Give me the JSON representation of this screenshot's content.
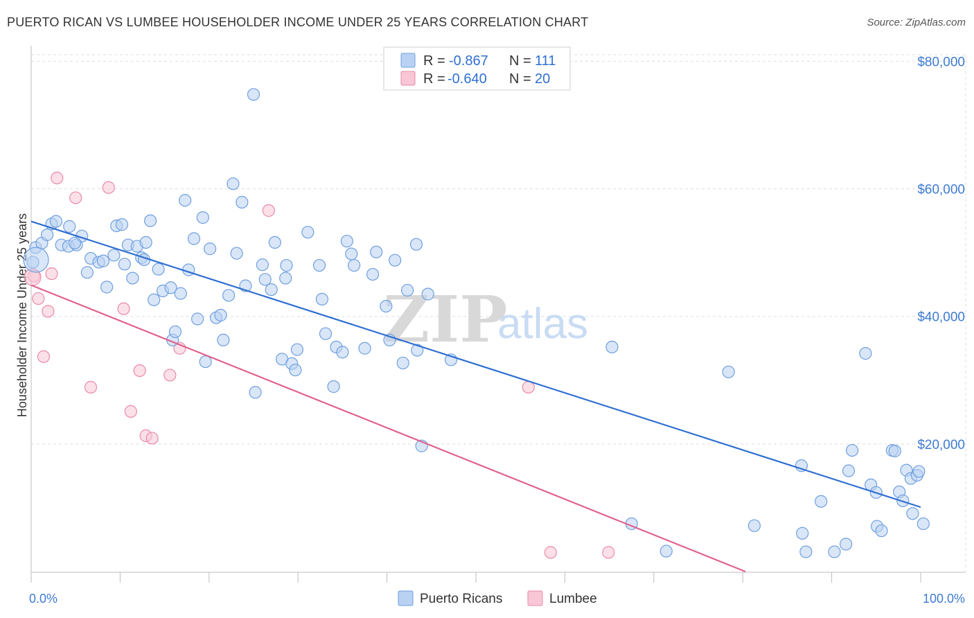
{
  "header": {
    "title": "PUERTO RICAN VS LUMBEE HOUSEHOLDER INCOME UNDER 25 YEARS CORRELATION CHART",
    "source": "Source: ZipAtlas.com"
  },
  "watermark": {
    "zip": "ZIP",
    "atlas": "atlas"
  },
  "legend": {
    "r_label": "R =",
    "n_label": "N =",
    "rows": [
      {
        "series": "Puerto Ricans",
        "r": "-0.867",
        "n": "111"
      },
      {
        "series": "Lumbee",
        "r": "-0.640",
        "n": "20"
      }
    ]
  },
  "colors": {
    "blue_fill": "#b9d1f3",
    "blue_stroke": "#6f9fdf",
    "blue_line": "#2f6fd1",
    "pink_fill": "#f8c6d5",
    "pink_stroke": "#e98aa8",
    "pink_line": "#e0628e",
    "grid": "#dddddd",
    "tick_label": "#3d7bd1"
  },
  "chart_data": {
    "type": "scatter",
    "title": "PUERTO RICAN VS LUMBEE HOUSEHOLDER INCOME UNDER 25 YEARS CORRELATION CHART",
    "xlabel": "",
    "ylabel": "Householder Income Under 25 years",
    "xlim": [
      0,
      100
    ],
    "ylim": [
      0,
      82000
    ],
    "x_tick_labels": [
      "0.0%",
      "100.0%"
    ],
    "y_ticks": [
      20000,
      40000,
      60000,
      80000
    ],
    "y_tick_labels": [
      "$20,000",
      "$40,000",
      "$60,000",
      "$80,000"
    ],
    "grid": true,
    "legend_position": "top-center",
    "series": [
      {
        "name": "Puerto Ricans",
        "r": -0.867,
        "n": 111,
        "trend": {
          "x": [
            0,
            100
          ],
          "y": [
            54900,
            10100
          ]
        },
        "points": [
          [
            0.2,
            48500
          ],
          [
            0.5,
            50800
          ],
          [
            1.2,
            51500
          ],
          [
            1.8,
            52800
          ],
          [
            2.3,
            54500
          ],
          [
            2.8,
            54900
          ],
          [
            3.4,
            51200
          ],
          [
            4.2,
            51000
          ],
          [
            4.3,
            54100
          ],
          [
            5.1,
            51200
          ],
          [
            5.7,
            52600
          ],
          [
            6.3,
            46900
          ],
          [
            6.7,
            49100
          ],
          [
            7.6,
            48500
          ],
          [
            8.1,
            48700
          ],
          [
            8.5,
            44600
          ],
          [
            9.3,
            49600
          ],
          [
            9.6,
            54200
          ],
          [
            10.2,
            54400
          ],
          [
            10.5,
            48200
          ],
          [
            10.9,
            51200
          ],
          [
            11.4,
            46000
          ],
          [
            11.9,
            51000
          ],
          [
            12.4,
            49200
          ],
          [
            12.7,
            48900
          ],
          [
            12.9,
            51600
          ],
          [
            13.4,
            55000
          ],
          [
            13.8,
            42600
          ],
          [
            14.3,
            47400
          ],
          [
            14.8,
            44000
          ],
          [
            15.7,
            44500
          ],
          [
            15.9,
            36300
          ],
          [
            16.2,
            37600
          ],
          [
            16.8,
            43600
          ],
          [
            17.3,
            58200
          ],
          [
            17.7,
            47300
          ],
          [
            18.3,
            52200
          ],
          [
            18.7,
            39600
          ],
          [
            19.3,
            55500
          ],
          [
            19.6,
            32900
          ],
          [
            20.1,
            50600
          ],
          [
            20.8,
            39800
          ],
          [
            21.3,
            40200
          ],
          [
            21.6,
            36300
          ],
          [
            22.2,
            43300
          ],
          [
            22.7,
            60800
          ],
          [
            23.1,
            49900
          ],
          [
            23.7,
            57900
          ],
          [
            24.1,
            44800
          ],
          [
            25.0,
            74800
          ],
          [
            25.2,
            28100
          ],
          [
            26.0,
            48100
          ],
          [
            26.3,
            45800
          ],
          [
            27.0,
            44200
          ],
          [
            27.4,
            51600
          ],
          [
            28.2,
            33300
          ],
          [
            28.6,
            46000
          ],
          [
            28.7,
            48000
          ],
          [
            29.3,
            32600
          ],
          [
            29.7,
            31600
          ],
          [
            29.9,
            34800
          ],
          [
            31.1,
            53200
          ],
          [
            32.4,
            48000
          ],
          [
            32.7,
            42700
          ],
          [
            33.1,
            37300
          ],
          [
            34.0,
            29000
          ],
          [
            34.3,
            35200
          ],
          [
            35.0,
            34400
          ],
          [
            35.5,
            51800
          ],
          [
            36.0,
            49800
          ],
          [
            36.3,
            48000
          ],
          [
            37.5,
            35000
          ],
          [
            38.4,
            46600
          ],
          [
            38.8,
            50100
          ],
          [
            39.9,
            41600
          ],
          [
            40.3,
            36300
          ],
          [
            40.9,
            48800
          ],
          [
            41.8,
            32700
          ],
          [
            42.3,
            44100
          ],
          [
            43.3,
            51300
          ],
          [
            43.4,
            34700
          ],
          [
            43.9,
            19700
          ],
          [
            44.6,
            43500
          ],
          [
            47.2,
            33200
          ],
          [
            65.3,
            35200
          ],
          [
            67.5,
            7500
          ],
          [
            71.4,
            3200
          ],
          [
            78.4,
            31300
          ],
          [
            81.3,
            7200
          ],
          [
            86.6,
            16600
          ],
          [
            86.7,
            6000
          ],
          [
            87.1,
            3100
          ],
          [
            88.8,
            11000
          ],
          [
            90.3,
            3100
          ],
          [
            91.6,
            4300
          ],
          [
            91.9,
            15800
          ],
          [
            92.3,
            19000
          ],
          [
            93.8,
            34200
          ],
          [
            94.4,
            13600
          ],
          [
            95.0,
            12400
          ],
          [
            95.1,
            7100
          ],
          [
            95.6,
            6400
          ],
          [
            96.8,
            19000
          ],
          [
            97.1,
            18900
          ],
          [
            97.6,
            12500
          ],
          [
            98.0,
            11100
          ],
          [
            98.4,
            15900
          ],
          [
            98.9,
            14600
          ],
          [
            99.1,
            9100
          ],
          [
            99.6,
            15100
          ],
          [
            99.8,
            15700
          ],
          [
            100.3,
            7500
          ],
          [
            4.9,
            51500
          ]
        ]
      },
      {
        "name": "Lumbee",
        "r": -0.64,
        "n": 20,
        "trend": {
          "x": [
            0,
            80.3
          ],
          "y": [
            44900,
            0
          ]
        },
        "points": [
          [
            0.3,
            46300
          ],
          [
            0.8,
            42800
          ],
          [
            1.4,
            33700
          ],
          [
            1.9,
            40800
          ],
          [
            2.3,
            46700
          ],
          [
            2.9,
            61700
          ],
          [
            5.0,
            58600
          ],
          [
            6.7,
            28900
          ],
          [
            8.7,
            60200
          ],
          [
            10.4,
            41200
          ],
          [
            11.2,
            25100
          ],
          [
            12.2,
            31500
          ],
          [
            12.9,
            21300
          ],
          [
            13.6,
            20900
          ],
          [
            15.6,
            30800
          ],
          [
            16.7,
            35000
          ],
          [
            26.7,
            56600
          ],
          [
            55.9,
            28900
          ],
          [
            58.4,
            3000
          ],
          [
            64.9,
            3000
          ]
        ]
      }
    ]
  }
}
